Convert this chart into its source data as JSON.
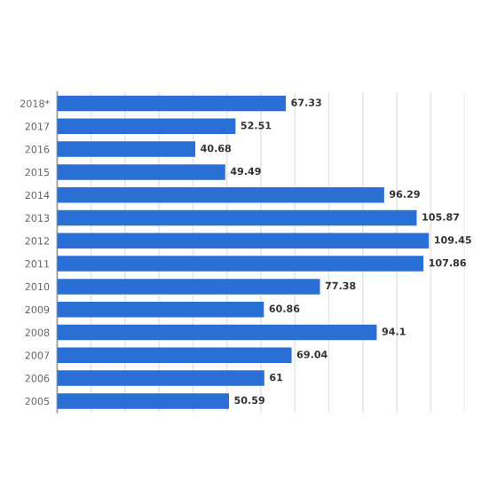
{
  "chart_data": {
    "type": "bar",
    "orientation": "horizontal",
    "categories": [
      "2018*",
      "2017",
      "2016",
      "2015",
      "2014",
      "2013",
      "2012",
      "2011",
      "2010",
      "2009",
      "2008",
      "2007",
      "2006",
      "2005"
    ],
    "values": [
      67.33,
      52.51,
      40.68,
      49.49,
      96.29,
      105.87,
      109.45,
      107.86,
      77.38,
      60.86,
      94.1,
      69.04,
      61,
      50.59
    ],
    "color": "#2a6fd6",
    "data_labels": true,
    "grid": "x",
    "tick_labels": "y",
    "xlim": [
      0,
      120
    ],
    "xticks": [
      {
        "value": 0,
        "label": null
      },
      {
        "value": 10,
        "label": null
      },
      {
        "value": 20,
        "label": null
      },
      {
        "value": 30,
        "label": null
      },
      {
        "value": 40,
        "label": null
      },
      {
        "value": 50,
        "label": null
      },
      {
        "value": 60,
        "label": null
      },
      {
        "value": 70,
        "label": null
      },
      {
        "value": 80,
        "label": null
      },
      {
        "value": 90,
        "label": null
      },
      {
        "value": 100,
        "label": null
      },
      {
        "value": 110,
        "label": null
      },
      {
        "value": 120,
        "label": null
      }
    ]
  }
}
